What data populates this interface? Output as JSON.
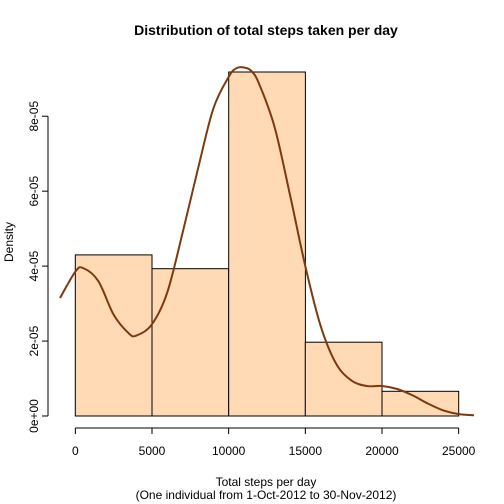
{
  "chart_data": {
    "type": "histogram",
    "title": "Distribution of total steps taken per day",
    "xlabel": "Total steps per day",
    "xlabel_sub": "(One individual from 1-Oct-2012 to 30-Nov-2012)",
    "ylabel": "Density",
    "bins": [
      {
        "start": 0,
        "end": 5000,
        "density": 4.3e-05
      },
      {
        "start": 5000,
        "end": 10000,
        "density": 3.93e-05
      },
      {
        "start": 10000,
        "end": 15000,
        "density": 9.18e-05
      },
      {
        "start": 15000,
        "end": 20000,
        "density": 1.97e-05
      },
      {
        "start": 20000,
        "end": 25000,
        "density": 6.6e-06
      }
    ],
    "x_ticks": [
      {
        "value": 0,
        "label": "0"
      },
      {
        "value": 5000,
        "label": "5000"
      },
      {
        "value": 10000,
        "label": "10000"
      },
      {
        "value": 15000,
        "label": "15000"
      },
      {
        "value": 20000,
        "label": "20000"
      },
      {
        "value": 25000,
        "label": "25000"
      }
    ],
    "y_ticks": [
      {
        "value": 0,
        "label": "0e+00"
      },
      {
        "value": 2e-05,
        "label": "2e-05"
      },
      {
        "value": 4e-05,
        "label": "4e-05"
      },
      {
        "value": 6e-05,
        "label": "6e-05"
      },
      {
        "value": 8e-05,
        "label": "8e-05"
      }
    ],
    "xlim": [
      -1000,
      26000
    ],
    "ylim": [
      0,
      9.18e-05
    ],
    "density_curve": {
      "x": [
        -1000,
        0,
        500,
        1500,
        2500,
        3500,
        4000,
        5000,
        6000,
        7000,
        8000,
        9000,
        10000,
        10500,
        11000,
        11500,
        12000,
        13000,
        14000,
        15000,
        16000,
        17000,
        18000,
        19000,
        20000,
        21000,
        22000,
        23000,
        24000,
        25000,
        26000
      ],
      "y": [
        3.15e-05,
        3.85e-05,
        3.95e-05,
        3.6e-05,
        2.7e-05,
        2.2e-05,
        2.15e-05,
        2.45e-05,
        3.3e-05,
        4.9e-05,
        6.6e-05,
        8.2e-05,
        9.05e-05,
        9.28e-05,
        9.3e-05,
        9.2e-05,
        8.85e-05,
        7.7e-05,
        5.9e-05,
        4e-05,
        2.4e-05,
        1.4e-05,
        9.5e-06,
        8e-06,
        8e-06,
        7.2e-06,
        5.5e-06,
        3.3e-06,
        1.5e-06,
        5e-07,
        2e-07
      ]
    },
    "colors": {
      "bar_fill": "#ffdab5",
      "curve": "#7b3a10"
    },
    "grid": false,
    "legend": "none"
  }
}
